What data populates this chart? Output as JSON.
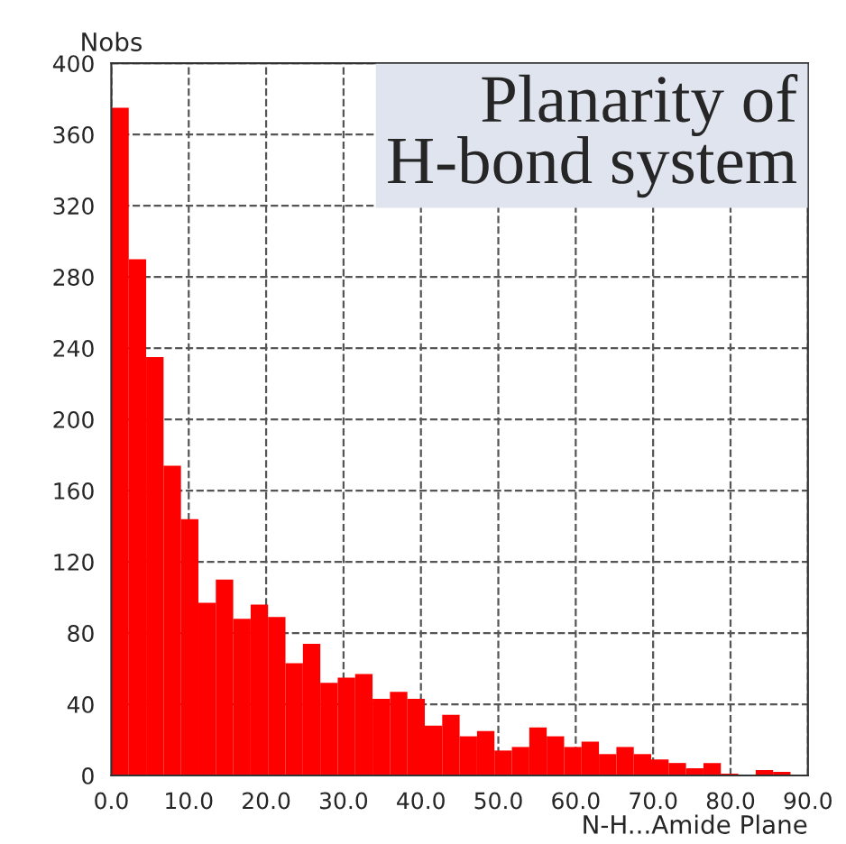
{
  "chart_data": {
    "type": "histogram",
    "title": "Planarity of\nH-bond system",
    "xlabel": "N-H...Amide Plane",
    "ylabel": "Nobs",
    "bins": [
      0,
      2.25,
      4.5,
      6.75,
      9,
      11.25,
      13.5,
      15.75,
      18,
      20.25,
      22.5,
      24.75,
      27,
      29.25,
      31.5,
      33.75,
      36,
      38.25,
      40.5,
      42.75,
      45,
      47.25,
      49.5,
      51.75,
      54,
      56.25,
      58.5,
      60.75,
      63,
      65.25,
      67.5,
      69.75,
      72,
      74.25,
      76.5,
      78.75,
      81,
      83.25,
      85.5,
      87.75,
      90
    ],
    "values": [
      375,
      290,
      235,
      174,
      144,
      97,
      110,
      88,
      96,
      89,
      63,
      74,
      52,
      55,
      57,
      43,
      47,
      43,
      28,
      34,
      22,
      25,
      14,
      16,
      27,
      22,
      16,
      19,
      12,
      16,
      12,
      9,
      7,
      4,
      7,
      1,
      0,
      3,
      2,
      0
    ],
    "color": "#ff0000",
    "xlim": [
      0,
      90
    ],
    "ylim": [
      0,
      400
    ],
    "xticks": [
      {
        "value": 0,
        "label": "0.0"
      },
      {
        "value": 10,
        "label": "10.0"
      },
      {
        "value": 20,
        "label": "20.0"
      },
      {
        "value": 30,
        "label": "30.0"
      },
      {
        "value": 40,
        "label": "40.0"
      },
      {
        "value": 50,
        "label": "50.0"
      },
      {
        "value": 60,
        "label": "60.0"
      },
      {
        "value": 70,
        "label": "70.0"
      },
      {
        "value": 80,
        "label": "80.0"
      },
      {
        "value": 90,
        "label": "90.0"
      }
    ],
    "yticks": [
      0,
      40,
      80,
      120,
      160,
      200,
      240,
      280,
      320,
      360,
      400
    ],
    "grid": true
  }
}
